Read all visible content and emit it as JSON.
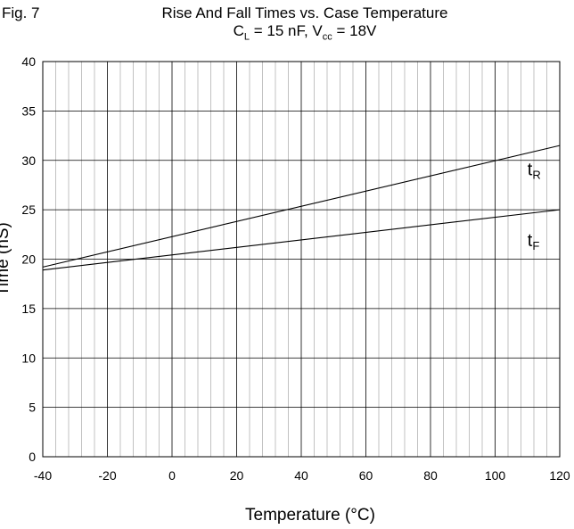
{
  "figure": {
    "label": "Fig. 7",
    "title_line1": "Rise And Fall Times vs. Case Temperature",
    "title_line2": {
      "cl_main": "C",
      "cl_sub": "L",
      "cl_rest": " = 15 nF, V",
      "vcc_sub": "cc",
      "vcc_rest": " = 18V"
    }
  },
  "chart_data": {
    "type": "line",
    "title": "Rise And Fall Times vs. Case Temperature",
    "subtitle": "CL = 15 nF, Vcc = 18V",
    "xlabel": "Temperature (°C)",
    "ylabel": "Time (nS)",
    "xlim": [
      -40,
      120
    ],
    "ylim": [
      0,
      40
    ],
    "x_ticks": [
      -40,
      -20,
      0,
      20,
      40,
      60,
      80,
      100,
      120
    ],
    "y_ticks": [
      0,
      5,
      10,
      15,
      20,
      25,
      30,
      35,
      40
    ],
    "grid": true,
    "series": [
      {
        "name": "tR",
        "label_main": "t",
        "label_sub": "R",
        "x": [
          -40,
          120
        ],
        "y": [
          19.2,
          31.5
        ]
      },
      {
        "name": "tF",
        "label_main": "t",
        "label_sub": "F",
        "x": [
          -40,
          120
        ],
        "y": [
          18.9,
          25.0
        ]
      }
    ]
  }
}
